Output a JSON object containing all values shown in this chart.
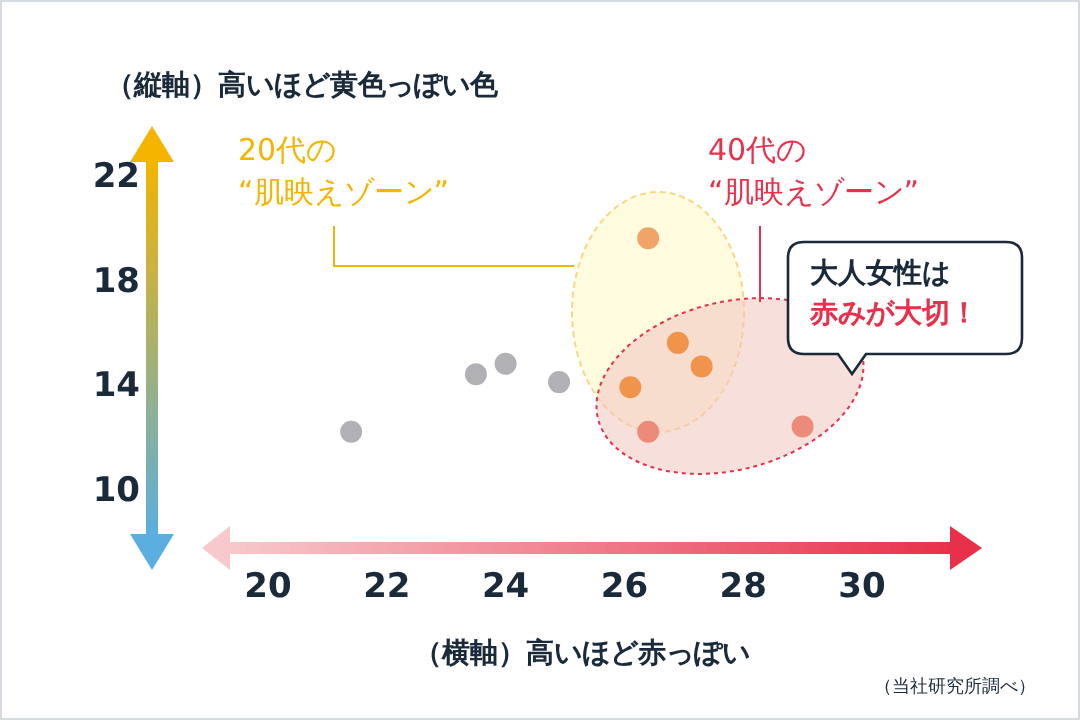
{
  "chart_data": {
    "type": "scatter",
    "ylabel": "（縦軸）高いほど黄色っぽい色",
    "xlabel": "（横軸）高いほど赤っぽい",
    "x": [
      21.4,
      23.5,
      24.0,
      24.9,
      26.4,
      26.9,
      27.3,
      26.1,
      26.4,
      29.0
    ],
    "values": [
      12.3,
      14.5,
      14.9,
      14.2,
      19.7,
      15.7,
      14.8,
      14.0,
      12.3,
      12.5
    ],
    "colors": [
      "#b0b0b5",
      "#b0b0b5",
      "#b0b0b5",
      "#b0b0b5",
      "#f0a468",
      "#f0944c",
      "#f0944c",
      "#f0944c",
      "#ee8a7a",
      "#ee8a7a"
    ],
    "xlim": [
      20,
      30
    ],
    "xticks": [
      20,
      22,
      24,
      26,
      28,
      30
    ],
    "ylim": [
      10,
      22
    ],
    "yticks": [
      10,
      14,
      18,
      22
    ],
    "marker": "circle",
    "grid": false,
    "legend": false,
    "annotations": [
      "20代の\n“肌映えゾーン”",
      "40代の\n“肌映えゾーン”",
      "大人女性は",
      "赤みが大切！",
      "（当社研究所調べ）"
    ]
  }
}
